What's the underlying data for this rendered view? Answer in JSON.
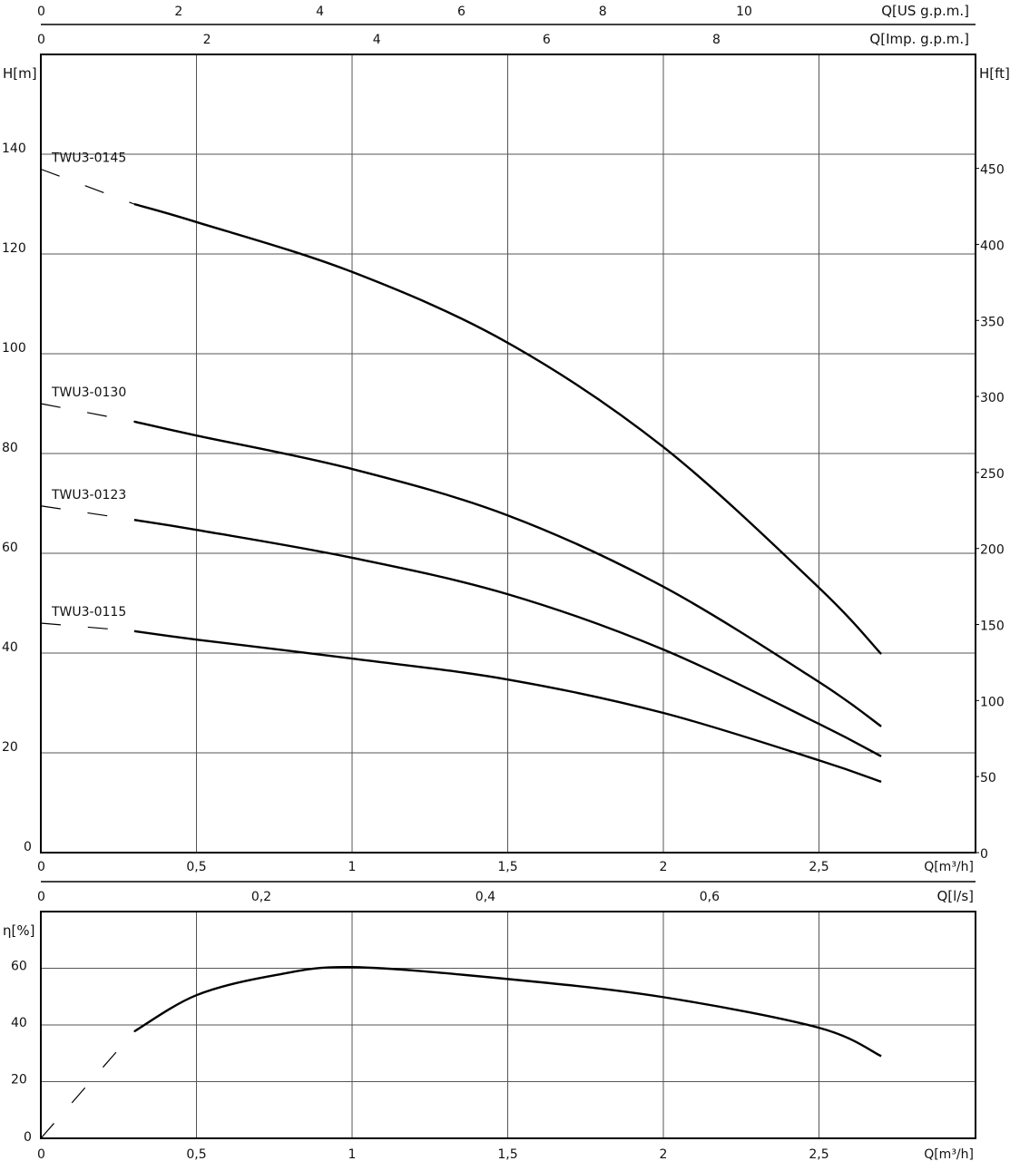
{
  "chart_data": [
    {
      "type": "line",
      "title": "",
      "xlabel": "Q[m³/h]",
      "ylabel": "H[m]",
      "y2label": "H[ft]",
      "xlim": [
        0,
        3
      ],
      "ylim": [
        0,
        160
      ],
      "y2lim": [
        0,
        525
      ],
      "xticks": [
        "0",
        "0,5",
        "1",
        "1,5",
        "2",
        "2,5"
      ],
      "xtick_values": [
        0,
        0.5,
        1,
        1.5,
        2,
        2.5
      ],
      "yticks": [
        0,
        20,
        40,
        60,
        80,
        100,
        120,
        140
      ],
      "y2ticks": [
        0,
        50,
        100,
        150,
        200,
        250,
        300,
        350,
        400,
        450
      ],
      "top_axes": [
        {
          "label": "Q[US g.p.m.]",
          "ticks": [
            0,
            2,
            4,
            6,
            8,
            10
          ],
          "factor": 4.403
        },
        {
          "label": "Q[Imp. g.p.m.]",
          "ticks": [
            0,
            2,
            4,
            6,
            8
          ],
          "factor": 3.666
        }
      ],
      "bottom_axis2": {
        "label": "Q[l/s]",
        "ticks": [
          "0",
          "0,2",
          "0,4",
          "0,6"
        ],
        "tick_values": [
          0,
          0.2,
          0.4,
          0.6
        ],
        "factor": 0.27778
      },
      "grid": true,
      "series": [
        {
          "name": "TWU3-0145",
          "dashed_x": [
            0,
            0.3
          ],
          "dashed_y": [
            137,
            130
          ],
          "x": [
            0.3,
            0.5,
            1,
            1.5,
            2,
            2.5,
            2.7
          ],
          "y": [
            130,
            126.4,
            116.4,
            102.2,
            81.3,
            53.1,
            39.8
          ]
        },
        {
          "name": "TWU3-0130",
          "dashed_x": [
            0,
            0.3
          ],
          "dashed_y": [
            90,
            86.4
          ],
          "x": [
            0.3,
            0.5,
            1,
            1.5,
            2,
            2.5,
            2.7
          ],
          "y": [
            86.4,
            83.6,
            76.9,
            67.6,
            53.3,
            34.2,
            25.3
          ]
        },
        {
          "name": "TWU3-0123",
          "dashed_x": [
            0,
            0.3
          ],
          "dashed_y": [
            69.5,
            66.7
          ],
          "x": [
            0.3,
            0.5,
            1,
            1.5,
            2,
            2.5,
            2.7
          ],
          "y": [
            66.7,
            64.7,
            59.1,
            51.8,
            40.7,
            25.8,
            19.3
          ]
        },
        {
          "name": "TWU3-0115",
          "dashed_x": [
            0,
            0.3
          ],
          "dashed_y": [
            46,
            44.4
          ],
          "x": [
            0.3,
            0.5,
            1,
            1.5,
            2,
            2.5,
            2.7
          ],
          "y": [
            44.4,
            42.7,
            38.9,
            34.7,
            28,
            18.5,
            14.2
          ]
        }
      ]
    },
    {
      "type": "line",
      "title": "",
      "xlabel": "Q[m³/h]",
      "ylabel": "η[%]",
      "xlim": [
        0,
        3
      ],
      "ylim": [
        0,
        80
      ],
      "xticks": [
        "0",
        "0,5",
        "1",
        "1,5",
        "2",
        "2,5"
      ],
      "xtick_values": [
        0,
        0.5,
        1,
        1.5,
        2,
        2.5
      ],
      "yticks": [
        0,
        20,
        40,
        60
      ],
      "grid": true,
      "series": [
        {
          "dashed_x": [
            0,
            0.3
          ],
          "dashed_y": [
            0,
            37.7
          ],
          "x": [
            0.3,
            0.5,
            0.75,
            1,
            1.5,
            2,
            2.5,
            2.7
          ],
          "y": [
            37.7,
            50.5,
            57.5,
            60.4,
            56.2,
            49.8,
            39,
            29
          ]
        }
      ]
    }
  ]
}
